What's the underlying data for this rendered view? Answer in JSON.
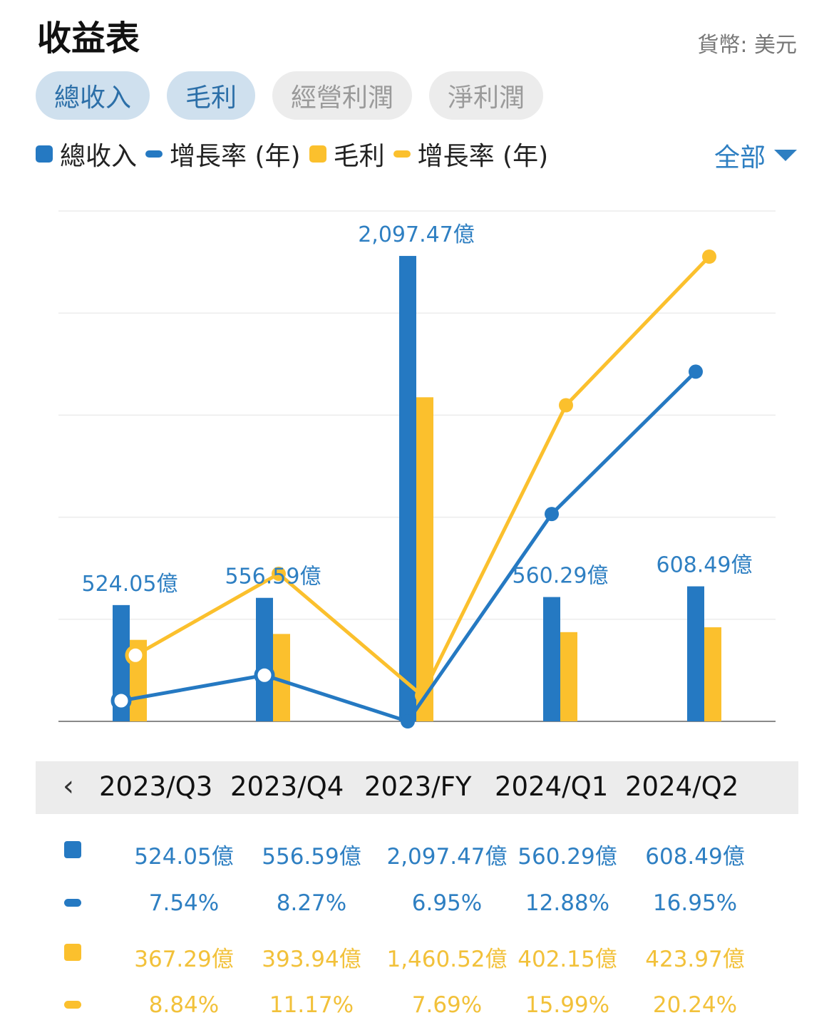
{
  "header": {
    "title": "收益表",
    "currency": "貨幣: 美元"
  },
  "tabs": [
    {
      "label": "總收入",
      "active": true
    },
    {
      "label": "毛利",
      "active": true
    },
    {
      "label": "經營利潤",
      "active": false
    },
    {
      "label": "淨利潤",
      "active": false
    }
  ],
  "legend": [
    {
      "label": "總收入",
      "shape": "square",
      "color": "#2579c2"
    },
    {
      "label": "增長率 (年)",
      "shape": "line",
      "color": "#2579c2"
    },
    {
      "label": "毛利",
      "shape": "square",
      "color": "#fbc02d"
    },
    {
      "label": "增長率 (年)",
      "shape": "line",
      "color": "#fbc02d"
    }
  ],
  "filter": {
    "label": "全部"
  },
  "colors": {
    "blue": "#2579c2",
    "yellow": "#fbc02d",
    "blue_text": "#2e7fc2",
    "yellow_text": "#f2c13a"
  },
  "chart_data": {
    "type": "bar",
    "categories": [
      "2023/Q3",
      "2023/Q4",
      "2023/FY",
      "2024/Q1",
      "2024/Q2"
    ],
    "series": [
      {
        "name": "總收入",
        "kind": "bar",
        "values": [
          524.05,
          556.59,
          2097.47,
          560.29,
          608.49
        ],
        "labels": [
          "524.05億",
          "556.59億",
          "2,097.47億",
          "560.29億",
          "608.49億"
        ]
      },
      {
        "name": "毛利",
        "kind": "bar",
        "values": [
          367.29,
          393.94,
          1460.52,
          402.15,
          423.97
        ]
      },
      {
        "name": "增長率 (年)",
        "kind": "line",
        "of": "總收入",
        "values": [
          7.54,
          8.27,
          6.95,
          12.88,
          16.95
        ]
      },
      {
        "name": "增長率 (年)",
        "kind": "line",
        "of": "毛利",
        "values": [
          8.84,
          11.17,
          7.69,
          15.99,
          20.24
        ]
      }
    ],
    "bar_value_range": [
      0,
      2300
    ],
    "rate_range": [
      6.95,
      20.24
    ],
    "grid": true
  },
  "table": {
    "rows": [
      {
        "kind": "square",
        "color": "#2579c2",
        "text_color": "#2e7fc2",
        "cells": [
          "524.05億",
          "556.59億",
          "2,097.47億",
          "560.29億",
          "608.49億"
        ]
      },
      {
        "kind": "line",
        "color": "#2579c2",
        "text_color": "#2e7fc2",
        "cells": [
          "7.54%",
          "8.27%",
          "6.95%",
          "12.88%",
          "16.95%"
        ]
      },
      {
        "kind": "square",
        "color": "#fbc02d",
        "text_color": "#f2c13a",
        "cells": [
          "367.29億",
          "393.94億",
          "1,460.52億",
          "402.15億",
          "423.97億"
        ]
      },
      {
        "kind": "line",
        "color": "#fbc02d",
        "text_color": "#f2c13a",
        "cells": [
          "8.84%",
          "11.17%",
          "7.69%",
          "15.99%",
          "20.24%"
        ]
      }
    ]
  }
}
